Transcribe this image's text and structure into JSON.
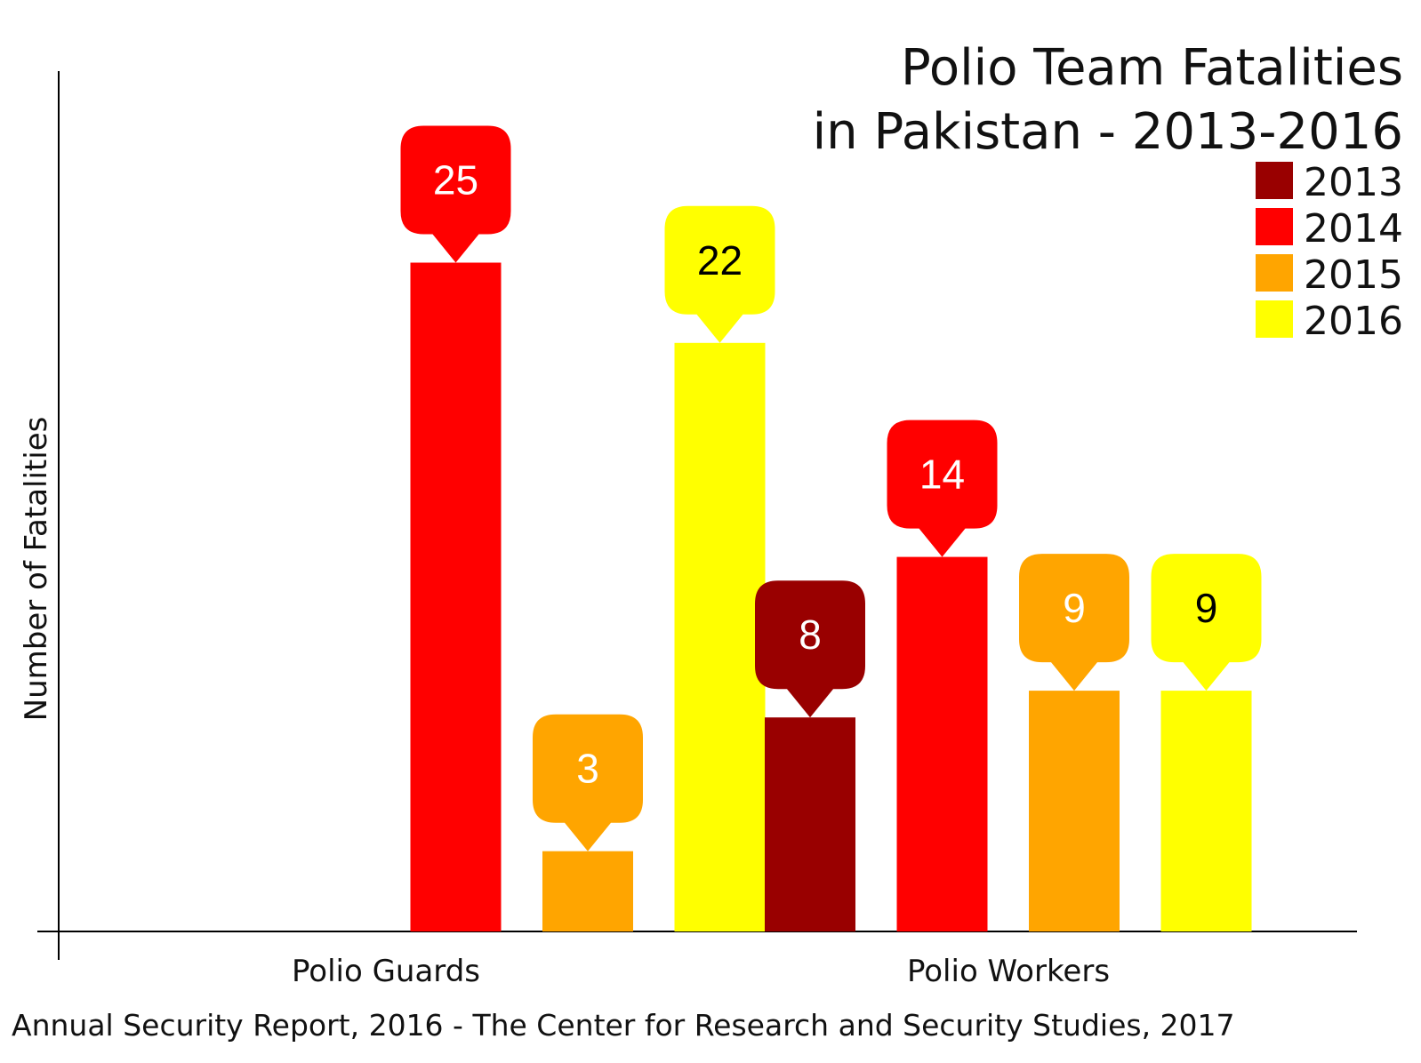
{
  "chart_data": {
    "type": "bar",
    "title": [
      "Polio Team Fatalities",
      "in Pakistan - 2013-2016"
    ],
    "xlabel": "",
    "ylabel": "Number of Fatalities",
    "categories": [
      "Polio Guards",
      "Polio Workers"
    ],
    "series": [
      {
        "name": "2013",
        "color": "#990000",
        "label_color": "#ffffff",
        "values": [
          null,
          8
        ]
      },
      {
        "name": "2014",
        "color": "#ff0000",
        "label_color": "#ffffff",
        "values": [
          25,
          14
        ]
      },
      {
        "name": "2015",
        "color": "#ffa500",
        "label_color": "#ffffff",
        "values": [
          3,
          9
        ]
      },
      {
        "name": "2016",
        "color": "#ffff00",
        "label_color": "#000000",
        "values": [
          22,
          9
        ]
      }
    ],
    "ylim": [
      0,
      25
    ],
    "grid": false,
    "legend_position": "top-right",
    "source": "Annual Security Report, 2016 - The Center for Research and Security Studies, 2017"
  }
}
